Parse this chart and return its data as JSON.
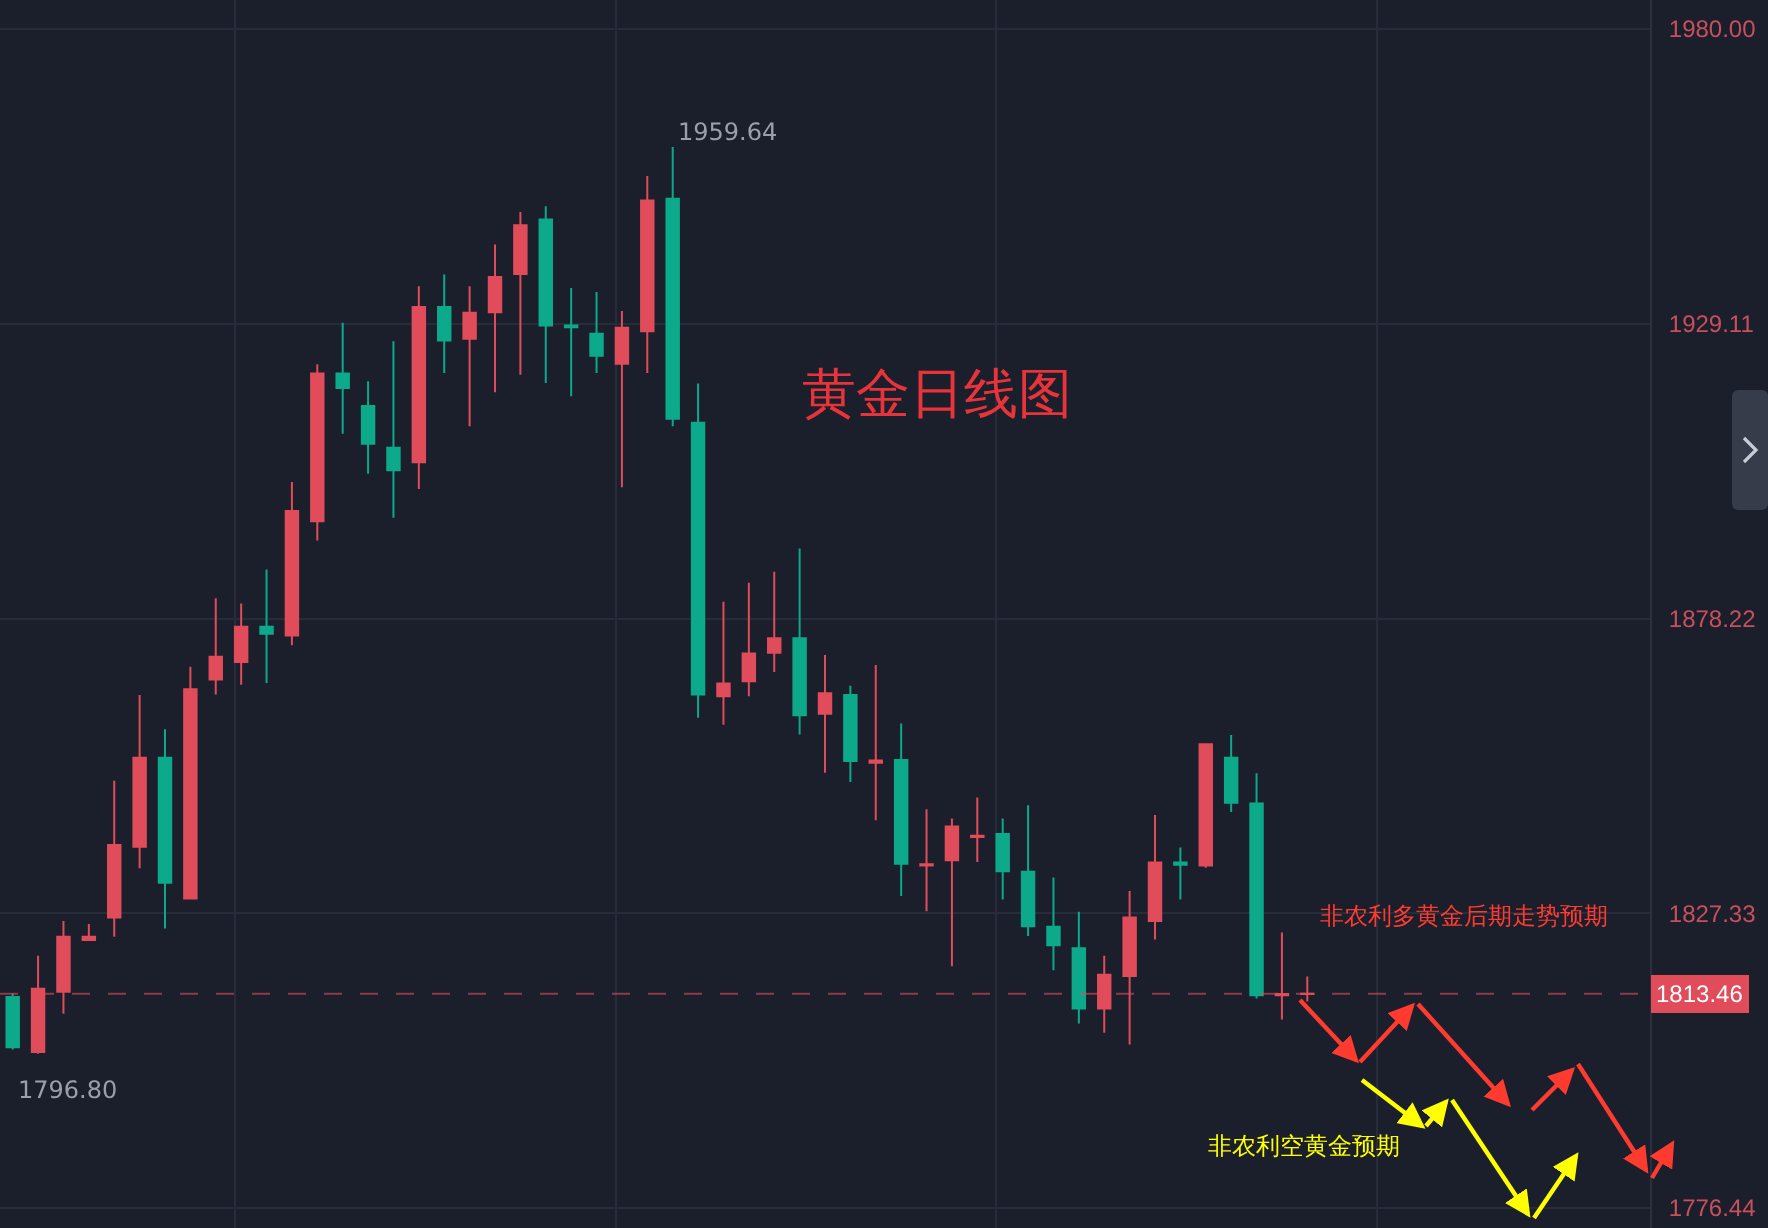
{
  "chart_data": {
    "type": "candlestick",
    "title": "黄金日线图",
    "categories": [
      null,
      null,
      null,
      null,
      null,
      null,
      null,
      null,
      null,
      null,
      null,
      null,
      null,
      null,
      null,
      null,
      null,
      null,
      null,
      null,
      null,
      null,
      null,
      null,
      null,
      null,
      null,
      null,
      null,
      null,
      null,
      null,
      null,
      null,
      null,
      null,
      null,
      null,
      null,
      null,
      null,
      null,
      null,
      null,
      null,
      null,
      null,
      null,
      null,
      null,
      null,
      null,
      null,
      null,
      null,
      null,
      null,
      null,
      null,
      null,
      null,
      null,
      null,
      null,
      null
    ],
    "ohlc": [
      [
        1812.9,
        1813.5,
        1803.8,
        1804.2
      ],
      [
        1803.4,
        1820.0,
        1803.1,
        1814.3
      ],
      [
        1813.8,
        1826.0,
        1810.0,
        1823.3
      ],
      [
        1822.7,
        1825.5,
        1822.7,
        1823.3
      ],
      [
        1826.6,
        1850.2,
        1823.3,
        1839.1
      ],
      [
        1838.8,
        1865.0,
        1835.1,
        1854.2
      ],
      [
        1854.2,
        1859.1,
        1824.7,
        1832.6
      ],
      [
        1829.9,
        1869.9,
        1829.9,
        1866.0
      ],
      [
        1867.7,
        1881.7,
        1865.1,
        1871.6
      ],
      [
        1870.7,
        1880.8,
        1866.8,
        1876.8
      ],
      [
        1876.8,
        1886.7,
        1867.1,
        1875.6
      ],
      [
        1875.3,
        1901.8,
        1873.6,
        1896.8
      ],
      [
        1895.0,
        1922.1,
        1891.7,
        1920.5
      ],
      [
        1920.5,
        1929.3,
        1910.1,
        1918.0
      ],
      [
        1914.9,
        1919.2,
        1903.2,
        1908.4
      ],
      [
        1907.7,
        1926.1,
        1895.6,
        1903.8
      ],
      [
        1905.2,
        1935.6,
        1900.6,
        1932.0
      ],
      [
        1932.0,
        1937.6,
        1920.6,
        1926.2
      ],
      [
        1926.5,
        1935.6,
        1911.4,
        1931.0
      ],
      [
        1931.1,
        1942.8,
        1917.3,
        1937.2
      ],
      [
        1937.7,
        1948.4,
        1920.3,
        1946.1
      ],
      [
        1947.1,
        1949.4,
        1918.9,
        1928.8
      ],
      [
        1928.8,
        1935.3,
        1916.6,
        1928.5
      ],
      [
        1927.4,
        1934.6,
        1920.6,
        1923.6
      ],
      [
        1922.2,
        1931.3,
        1900.9,
        1928.4
      ],
      [
        1927.8,
        1954.6,
        1920.6,
        1950.4
      ],
      [
        1950.7,
        1959.64,
        1911.4,
        1912.7
      ],
      [
        1912.0,
        1918.8,
        1861.1,
        1865.1
      ],
      [
        1864.8,
        1881.1,
        1859.9,
        1867.0
      ],
      [
        1867.4,
        1884.4,
        1864.8,
        1872.2
      ],
      [
        1872.3,
        1886.3,
        1869.0,
        1874.8
      ],
      [
        1874.8,
        1890.3,
        1858.2,
        1861.5
      ],
      [
        1861.8,
        1871.9,
        1851.6,
        1865.3
      ],
      [
        1865.0,
        1866.6,
        1850.0,
        1853.6
      ],
      [
        1853.3,
        1870.2,
        1843.4,
        1853.7
      ],
      [
        1853.8,
        1860.1,
        1830.3,
        1835.9
      ],
      [
        1835.6,
        1845.3,
        1827.7,
        1835.8
      ],
      [
        1836.5,
        1843.7,
        1818.2,
        1842.3
      ],
      [
        1840.5,
        1847.3,
        1836.2,
        1840.7
      ],
      [
        1841.0,
        1843.7,
        1829.7,
        1834.6
      ],
      [
        1834.5,
        1846.0,
        1823.4,
        1825.1
      ],
      [
        1825.0,
        1833.5,
        1817.5,
        1821.8
      ],
      [
        1821.3,
        1827.6,
        1808.3,
        1810.9
      ],
      [
        1810.9,
        1820.0,
        1806.7,
        1816.7
      ],
      [
        1816.5,
        1831.2,
        1804.7,
        1826.6
      ],
      [
        1826.0,
        1844.3,
        1822.8,
        1836.1
      ],
      [
        1836.1,
        1838.7,
        1829.7,
        1835.7
      ],
      [
        1835.6,
        1856.5,
        1835.2,
        1856.5
      ],
      [
        1854.2,
        1858.1,
        1844.8,
        1846.4
      ],
      [
        1846.3,
        1851.5,
        1812.6,
        1813.2
      ],
      [
        1813.2,
        1824.0,
        1809.0,
        1813.4
      ],
      [
        1813.4,
        1816.4,
        1812.1,
        1813.46
      ],
      null,
      null,
      null,
      null,
      null,
      null,
      null,
      null,
      null,
      null,
      null,
      null,
      null
    ],
    "ylim": [
      1773.0,
      1985.0
    ],
    "yticks": [
      {
        "value": 1776.44,
        "label": "1776.44"
      },
      {
        "value": 1827.33,
        "label": "1827.33"
      },
      {
        "value": 1878.22,
        "label": "1878.22"
      },
      {
        "value": 1929.11,
        "label": "1929.11"
      },
      {
        "value": 1980,
        "label": "1980.00"
      }
    ],
    "grid": true,
    "tick_labels": "y",
    "ref_lines": [
      {
        "axis": "y",
        "value": 1813.46,
        "label": "1813.46",
        "color": "#e04c5a",
        "line_style": "dashed"
      }
    ],
    "annotations": [
      "1959.64",
      "1796.80",
      "非农利多黄金后期走势预期",
      "非农利空黄金预期"
    ]
  }
}
